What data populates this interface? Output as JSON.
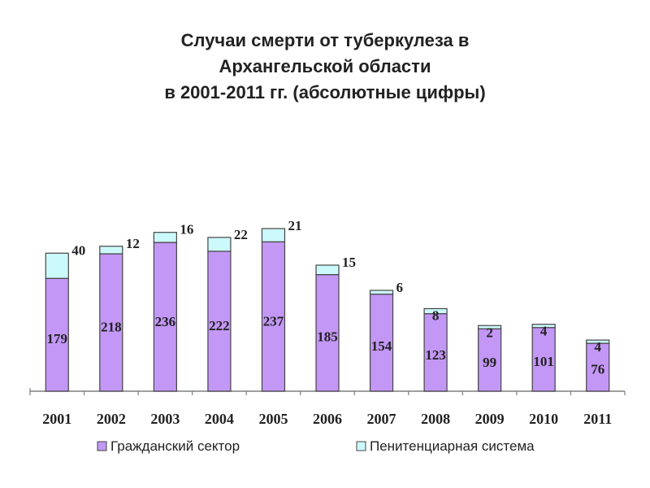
{
  "chart_data": {
    "type": "bar",
    "stacked": true,
    "title": "Случаи смерти от туберкулеза в Архангельской области в 2001-2011 гг. (абсолютные цифры)",
    "title_lines": [
      "Случаи смерти от туберкулеза в",
      "Архангельской области",
      "в 2001-2011 гг. (абсолютные цифры)"
    ],
    "categories": [
      "2001",
      "2002",
      "2003",
      "2004",
      "2005",
      "2006",
      "2007",
      "2008",
      "2009",
      "2010",
      "2011"
    ],
    "series": [
      {
        "name": "Гражданский сектор",
        "color": "#c397f6",
        "values": [
          179,
          218,
          236,
          222,
          237,
          185,
          154,
          123,
          99,
          101,
          76
        ]
      },
      {
        "name": "Пенитенциарная система",
        "color": "#ccf9fb",
        "values": [
          40,
          12,
          16,
          22,
          21,
          15,
          6,
          8,
          2,
          4,
          4
        ]
      }
    ],
    "ylim": [
      0,
      270
    ],
    "legend_position": "bottom",
    "grid": false
  }
}
